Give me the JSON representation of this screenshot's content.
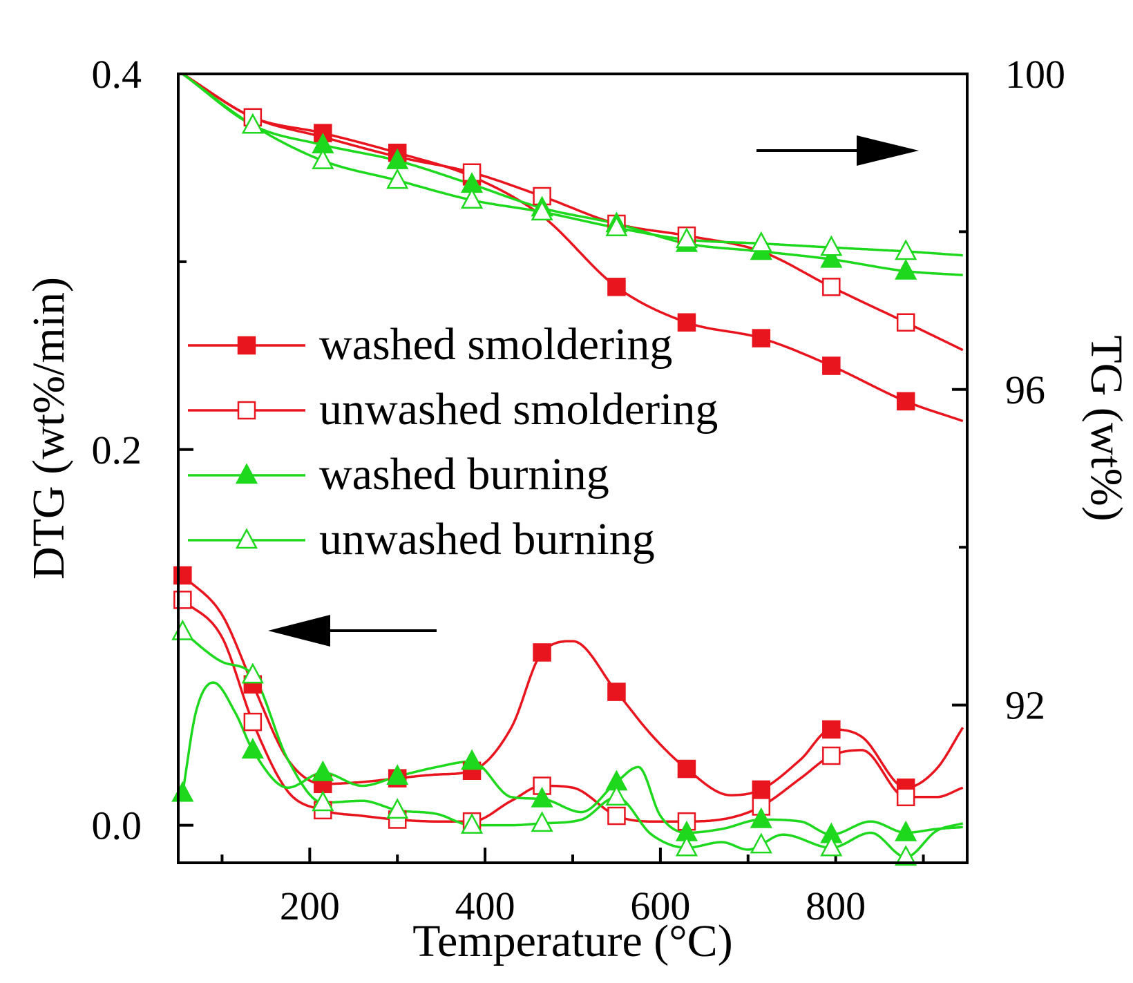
{
  "chart_data": {
    "type": "line",
    "title": "",
    "xlabel": "Temperature (°C)",
    "ylabel_left": "DTG (wt%/min)",
    "ylabel_right": "TG (wt%)",
    "xlim": [
      50,
      950
    ],
    "ylim_left": [
      -0.02,
      0.4
    ],
    "ylim_right": [
      90,
      100
    ],
    "x_ticks": [
      {
        "value": 200,
        "label": "200"
      },
      {
        "value": 400,
        "label": "400"
      },
      {
        "value": 600,
        "label": "600"
      },
      {
        "value": 800,
        "label": "800"
      }
    ],
    "left_ticks": [
      {
        "value": 0.0,
        "label": "0.0"
      },
      {
        "value": 0.2,
        "label": "0.2"
      },
      {
        "value": 0.4,
        "label": "0.4"
      }
    ],
    "right_ticks": [
      {
        "value": 92,
        "label": "92"
      },
      {
        "value": 96,
        "label": "96"
      },
      {
        "value": 100,
        "label": "100"
      }
    ],
    "legend": [
      {
        "label": "washed smoldering",
        "color": "#e8141e",
        "marker": "square-filled"
      },
      {
        "label": "unwashed smoldering",
        "color": "#e8141e",
        "marker": "square-open"
      },
      {
        "label": "washed burning",
        "color": "#1ed81e",
        "marker": "triangle-filled"
      },
      {
        "label": "unwashed burning",
        "color": "#1ed81e",
        "marker": "triangle-open"
      }
    ],
    "series": [
      {
        "name": "washed smoldering",
        "axis": "right",
        "color": "#e8141e",
        "marker": "square-filled",
        "x": [
          55,
          135,
          215,
          300,
          385,
          465,
          550,
          630,
          715,
          795,
          880,
          945
        ],
        "y": [
          100,
          99.45,
          99.25,
          99.0,
          98.7,
          98.2,
          97.3,
          96.85,
          96.65,
          96.3,
          95.85,
          95.6
        ],
        "marker_x": [
          215,
          300,
          385,
          550,
          630,
          715,
          795,
          880
        ]
      },
      {
        "name": "unwashed smoldering",
        "axis": "right",
        "color": "#e8141e",
        "marker": "square-open",
        "x": [
          55,
          135,
          215,
          300,
          385,
          465,
          550,
          630,
          715,
          795,
          880,
          945
        ],
        "y": [
          100,
          99.45,
          99.2,
          98.95,
          98.75,
          98.45,
          98.1,
          97.95,
          97.75,
          97.3,
          96.85,
          96.5
        ],
        "marker_x": [
          135,
          385,
          465,
          550,
          630,
          795,
          880
        ]
      },
      {
        "name": "washed burning",
        "axis": "right",
        "color": "#1ed81e",
        "marker": "triangle-filled",
        "x": [
          55,
          135,
          215,
          300,
          385,
          465,
          550,
          630,
          715,
          795,
          880,
          945
        ],
        "y": [
          100,
          99.35,
          99.1,
          98.9,
          98.6,
          98.3,
          98.1,
          97.85,
          97.75,
          97.65,
          97.5,
          97.45
        ],
        "marker_x": [
          215,
          300,
          385,
          465,
          550,
          630,
          715,
          795,
          880
        ]
      },
      {
        "name": "unwashed burning",
        "axis": "right",
        "color": "#1ed81e",
        "marker": "triangle-open",
        "x": [
          55,
          135,
          215,
          300,
          385,
          465,
          550,
          630,
          715,
          795,
          880,
          945
        ],
        "y": [
          100,
          99.35,
          98.9,
          98.65,
          98.4,
          98.25,
          98.05,
          97.9,
          97.85,
          97.8,
          97.75,
          97.7
        ],
        "marker_x": [
          135,
          215,
          300,
          385,
          465,
          550,
          630,
          715,
          795,
          880
        ]
      },
      {
        "name": "washed smoldering",
        "axis": "left",
        "color": "#e8141e",
        "marker": "square-filled",
        "x": [
          55,
          100,
          135,
          175,
          215,
          260,
          300,
          345,
          385,
          430,
          465,
          500,
          550,
          590,
          630,
          680,
          715,
          760,
          795,
          830,
          880,
          915,
          945
        ],
        "y": [
          0.133,
          0.112,
          0.075,
          0.035,
          0.022,
          0.023,
          0.025,
          0.027,
          0.029,
          0.052,
          0.092,
          0.098,
          0.071,
          0.048,
          0.03,
          0.016,
          0.019,
          0.035,
          0.051,
          0.047,
          0.02,
          0.03,
          0.052
        ],
        "marker_x": [
          55,
          135,
          215,
          300,
          385,
          465,
          550,
          630,
          715,
          795,
          880
        ]
      },
      {
        "name": "unwashed smoldering",
        "axis": "left",
        "color": "#e8141e",
        "marker": "square-open",
        "x": [
          55,
          100,
          135,
          175,
          215,
          260,
          300,
          345,
          385,
          430,
          465,
          500,
          550,
          590,
          630,
          680,
          715,
          760,
          795,
          830,
          880,
          915,
          945
        ],
        "y": [
          0.12,
          0.1,
          0.055,
          0.018,
          0.008,
          0.005,
          0.003,
          0.002,
          0.002,
          0.013,
          0.021,
          0.02,
          0.005,
          0.002,
          0.002,
          0.004,
          0.01,
          0.025,
          0.037,
          0.04,
          0.015,
          0.015,
          0.02
        ],
        "marker_x": [
          55,
          135,
          215,
          300,
          385,
          465,
          550,
          630,
          715,
          795,
          880
        ]
      },
      {
        "name": "washed burning",
        "axis": "left",
        "color": "#1ed81e",
        "marker": "triangle-filled",
        "x": [
          55,
          70,
          90,
          115,
          135,
          175,
          215,
          260,
          300,
          345,
          385,
          430,
          465,
          510,
          550,
          575,
          600,
          630,
          670,
          715,
          760,
          795,
          840,
          880,
          915,
          945
        ],
        "y": [
          0.017,
          0.06,
          0.076,
          0.06,
          0.04,
          0.02,
          0.028,
          0.021,
          0.026,
          0.031,
          0.034,
          0.015,
          0.014,
          0.007,
          0.023,
          0.031,
          0.005,
          -0.004,
          -0.002,
          0.003,
          0.002,
          -0.005,
          0.002,
          -0.004,
          -0.002,
          -0.001
        ],
        "marker_x": [
          55,
          135,
          215,
          300,
          385,
          465,
          550,
          630,
          715,
          795,
          880
        ]
      },
      {
        "name": "unwashed burning",
        "axis": "left",
        "color": "#1ed81e",
        "marker": "triangle-open",
        "x": [
          55,
          100,
          135,
          175,
          215,
          260,
          300,
          345,
          385,
          430,
          465,
          510,
          550,
          590,
          630,
          670,
          700,
          740,
          795,
          840,
          880,
          915,
          945
        ],
        "y": [
          0.103,
          0.087,
          0.08,
          0.035,
          0.012,
          0.013,
          0.008,
          0.006,
          0.0,
          0.0,
          0.001,
          0.003,
          0.015,
          -0.005,
          -0.012,
          -0.009,
          -0.013,
          -0.005,
          -0.012,
          -0.004,
          -0.017,
          -0.003,
          0.001
        ],
        "marker_x": [
          55,
          135,
          215,
          300,
          385,
          465,
          550,
          630,
          715,
          795,
          880
        ]
      }
    ]
  }
}
